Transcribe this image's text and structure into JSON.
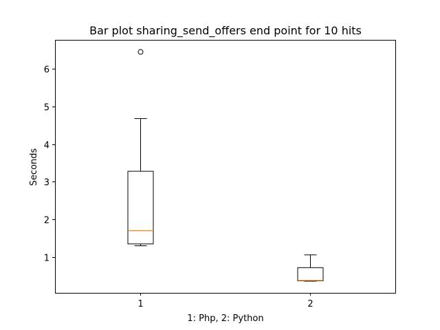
{
  "chart_data": {
    "type": "box",
    "title": "Bar plot sharing_send_offers end point for 10 hits",
    "xlabel": "1: Php, 2: Python",
    "ylabel": "Seconds",
    "categories": [
      "1",
      "2"
    ],
    "yticks": [
      "1",
      "2",
      "3",
      "4",
      "5",
      "6"
    ],
    "ylim": [
      0.05,
      6.77
    ],
    "grid": false,
    "boxes": [
      {
        "category": "1",
        "whisker_low": 1.3,
        "q1": 1.35,
        "median": 1.7,
        "q3": 3.28,
        "whisker_high": 4.68,
        "outliers": [
          6.45
        ]
      },
      {
        "category": "2",
        "whisker_low": 0.36,
        "q1": 0.37,
        "median": 0.38,
        "q3": 0.72,
        "whisker_high": 1.06,
        "outliers": []
      }
    ],
    "colors": {
      "box": "#000000",
      "median": "#ff7f0e",
      "outlier_edge": "#000000"
    }
  }
}
